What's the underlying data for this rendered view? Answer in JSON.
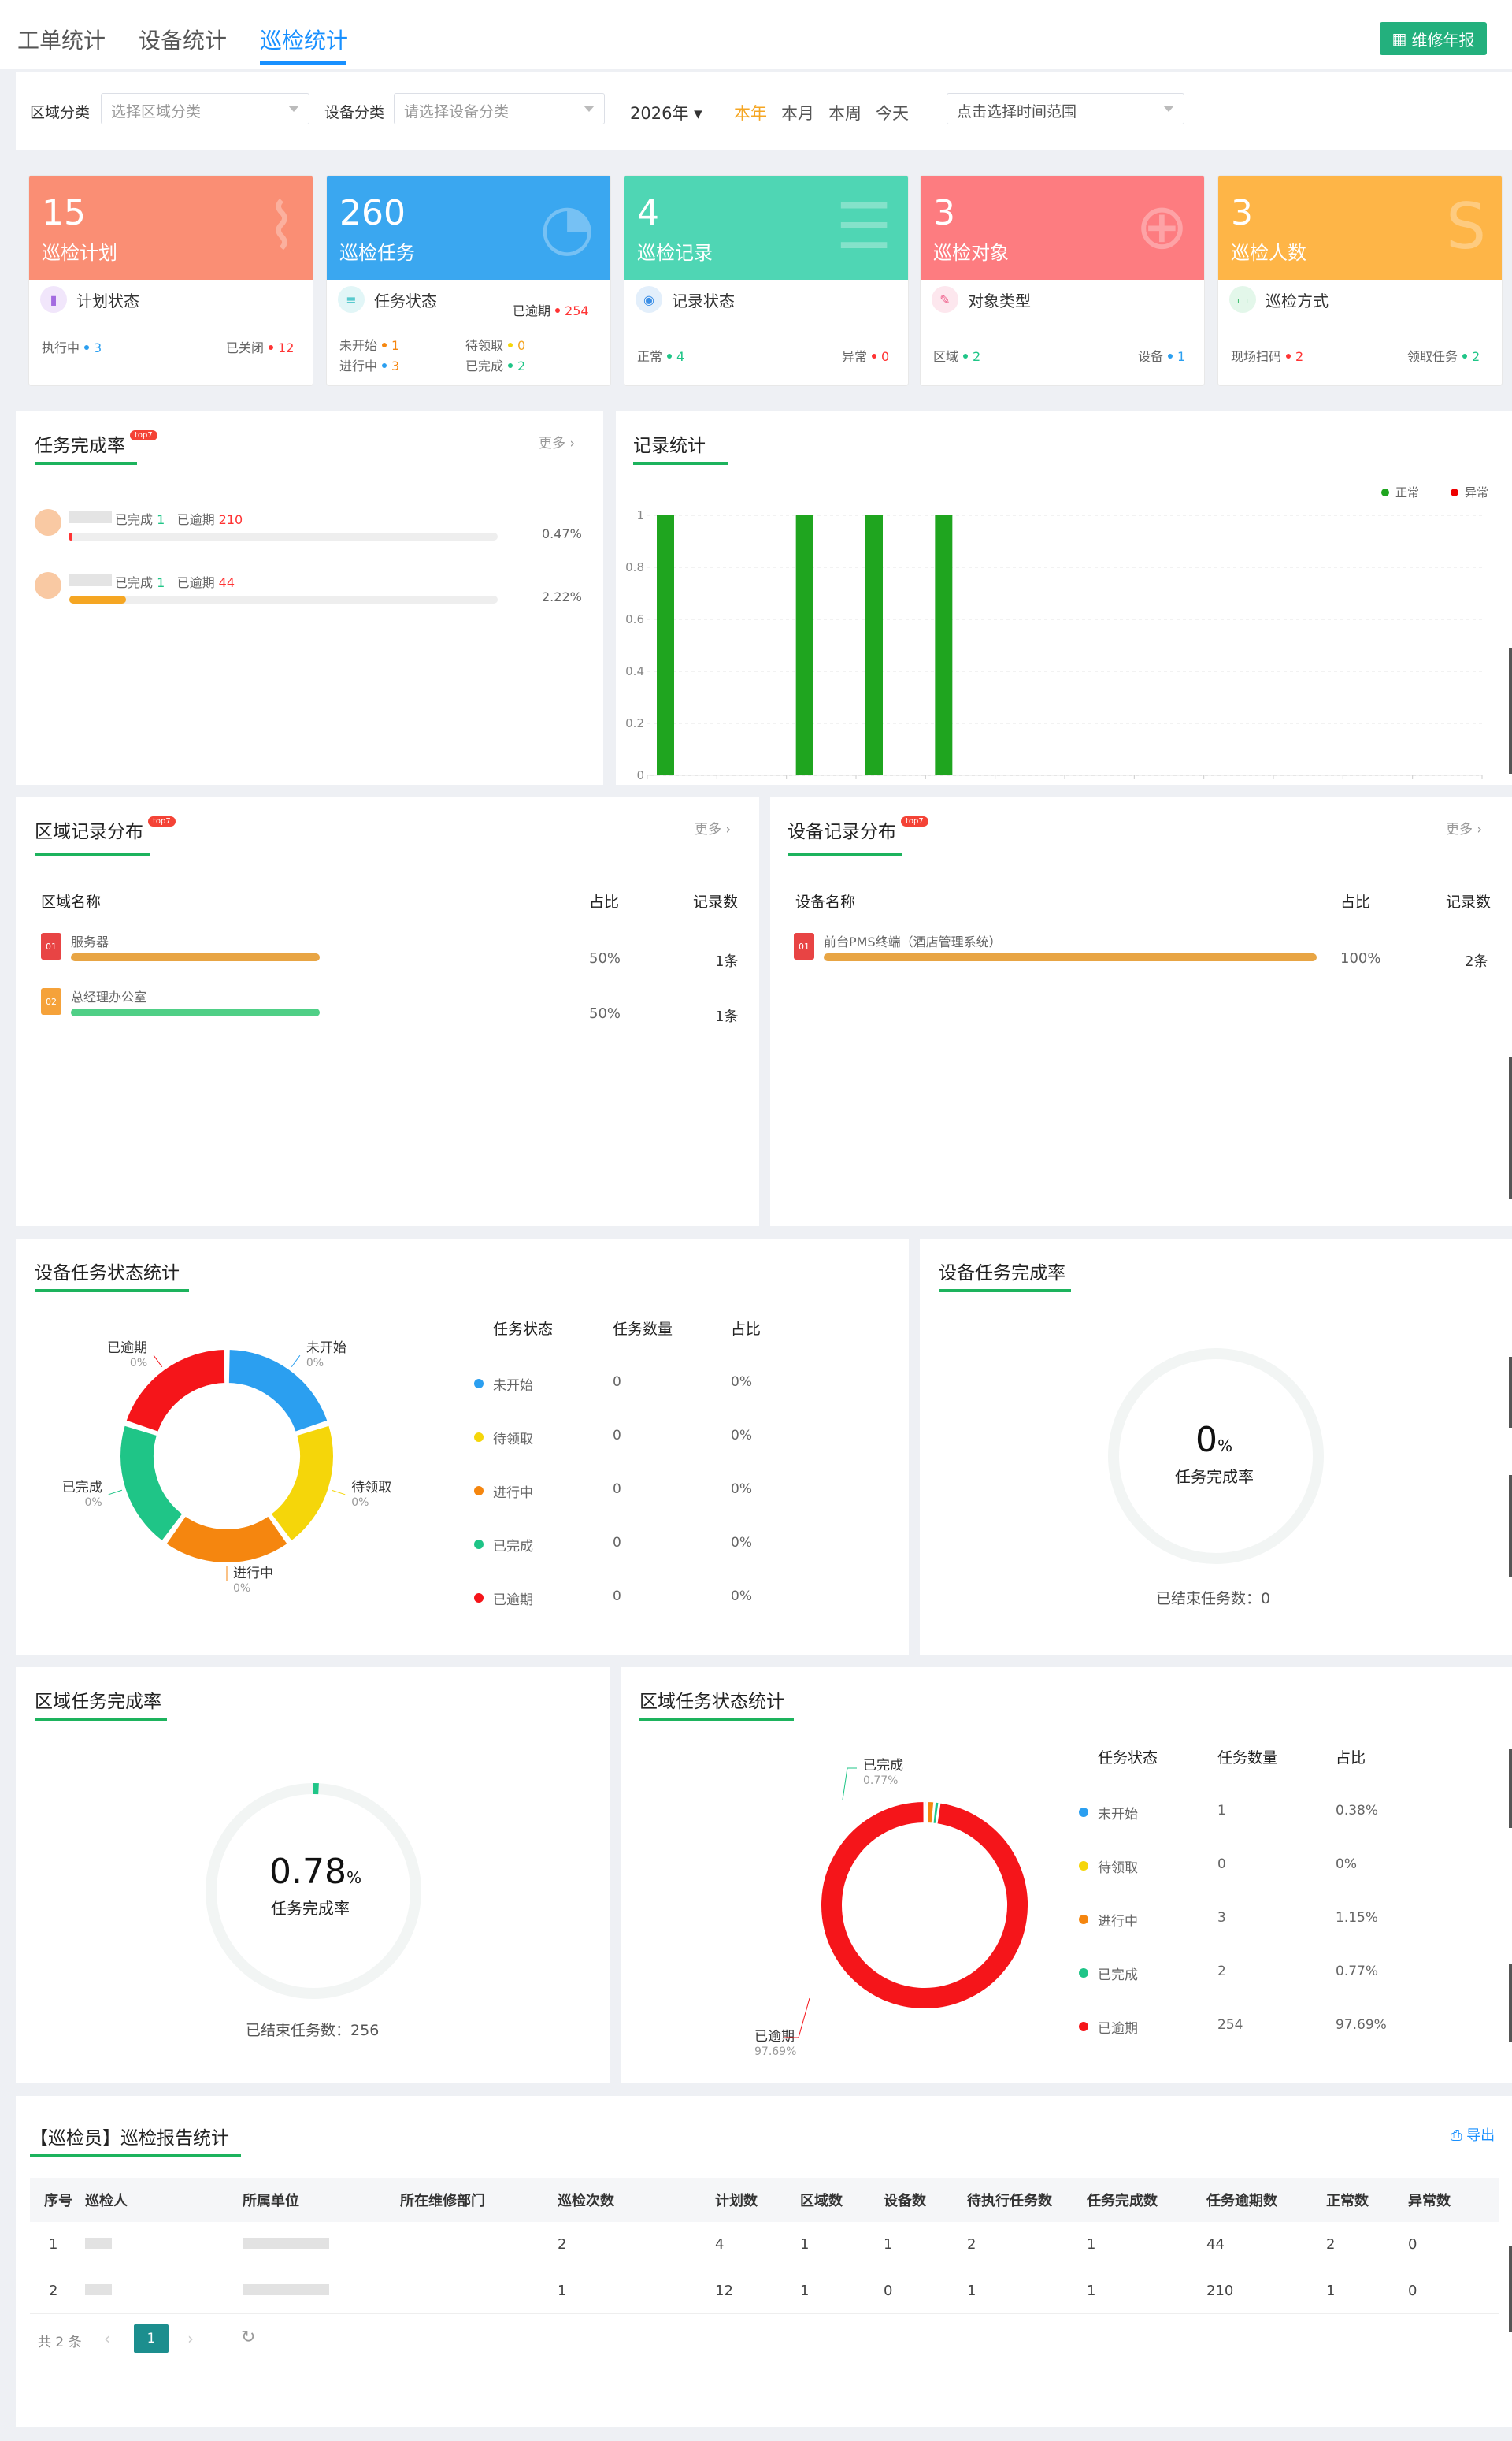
{
  "tabs": [
    "工单统计",
    "设备统计",
    "巡检统计"
  ],
  "report_button": "维修年报",
  "filters": {
    "area_label": "区域分类",
    "area_placeholder": "选择区域分类",
    "device_label": "设备分类",
    "device_placeholder": "请选择设备分类",
    "year": "2026年",
    "quick": [
      "本年",
      "本月",
      "本周",
      "今天"
    ],
    "range_placeholder": "点击选择时间范围"
  },
  "stats": [
    {
      "num": "15",
      "label": "巡检计划",
      "sub": "计划状态",
      "rows": [
        [
          "执行中",
          "3"
        ],
        [
          "已关闭",
          "12"
        ]
      ]
    },
    {
      "num": "260",
      "label": "巡检任务",
      "sub": "任务状态",
      "overdue_label": "已逾期",
      "overdue": "254",
      "rows": [
        [
          "未开始",
          "1"
        ],
        [
          "待领取",
          "0"
        ],
        [
          "进行中",
          "3"
        ],
        [
          "已完成",
          "2"
        ]
      ]
    },
    {
      "num": "4",
      "label": "巡检记录",
      "sub": "记录状态",
      "rows": [
        [
          "正常",
          "4"
        ],
        [
          "异常",
          "0"
        ]
      ]
    },
    {
      "num": "3",
      "label": "巡检对象",
      "sub": "对象类型",
      "rows": [
        [
          "区域",
          "2"
        ],
        [
          "设备",
          "1"
        ]
      ]
    },
    {
      "num": "3",
      "label": "巡检人数",
      "sub": "巡检方式",
      "rows": [
        [
          "现场扫码",
          "2"
        ],
        [
          "领取任务",
          "2"
        ]
      ]
    }
  ],
  "completion": {
    "title": "任务完成率",
    "hot": "top7",
    "more": "更多",
    "items": [
      {
        "done_label": "已完成",
        "done": "1",
        "overdue_label": "已逾期",
        "overdue": "210",
        "pct": "0.47%",
        "fill": 0.0047
      },
      {
        "done_label": "已完成",
        "done": "1",
        "overdue_label": "已逾期",
        "overdue": "44",
        "pct": "2.22%",
        "fill": 0.0222
      }
    ]
  },
  "records": {
    "title": "记录统计",
    "legend": [
      "正常",
      "异常"
    ]
  },
  "chart_data": {
    "type": "bar",
    "series": [
      {
        "name": "正常",
        "values": [
          1,
          0,
          1,
          1,
          1,
          0,
          0,
          0,
          0,
          0,
          0,
          0
        ]
      },
      {
        "name": "异常",
        "values": [
          0,
          0,
          0,
          0,
          0,
          0,
          0,
          0,
          0,
          0,
          0,
          0
        ]
      }
    ],
    "yticks": [
      "0",
      "0.2",
      "0.4",
      "0.6",
      "0.8",
      "1"
    ],
    "ylim": [
      0,
      1
    ]
  },
  "area_records": {
    "title": "区域记录分布",
    "hot": "top7",
    "more": "更多",
    "cols": [
      "区域名称",
      "占比",
      "记录数"
    ],
    "rows": [
      {
        "rank": "01",
        "name": "服务器",
        "pct": "50%",
        "count": "1条",
        "fill": 0.5
      },
      {
        "rank": "02",
        "name": "总经理办公室",
        "pct": "50%",
        "count": "1条",
        "fill": 0.5
      }
    ]
  },
  "device_records": {
    "title": "设备记录分布",
    "hot": "top7",
    "more": "更多",
    "cols": [
      "设备名称",
      "占比",
      "记录数"
    ],
    "rows": [
      {
        "rank": "01",
        "name": "前台PMS终端（酒店管理系统）",
        "pct": "100%",
        "count": "2条",
        "fill": 1
      }
    ]
  },
  "device_task_status": {
    "title": "设备任务状态统计",
    "cols": [
      "任务状态",
      "任务数量",
      "占比"
    ],
    "rows": [
      {
        "name": "未开始",
        "count": "0",
        "pct": "0%",
        "color": "#2b9ff0"
      },
      {
        "name": "待领取",
        "count": "0",
        "pct": "0%",
        "color": "#f5d60a"
      },
      {
        "name": "进行中",
        "count": "0",
        "pct": "0%",
        "color": "#f5860f"
      },
      {
        "name": "已完成",
        "count": "0",
        "pct": "0%",
        "color": "#1fc587"
      },
      {
        "name": "已逾期",
        "count": "0",
        "pct": "0%",
        "color": "#f5151a"
      }
    ],
    "donut_pct": [
      "0%",
      "0%",
      "0%",
      "0%",
      "0%"
    ]
  },
  "device_completion": {
    "title": "设备任务完成率",
    "value": "0",
    "unit": "%",
    "label": "任务完成率",
    "ended_label": "已结束任务数：",
    "ended": "0",
    "fill": 0
  },
  "area_completion": {
    "title": "区域任务完成率",
    "value": "0.78",
    "unit": "%",
    "label": "任务完成率",
    "ended_label": "已结束任务数：",
    "ended": "256",
    "fill": 0.0078
  },
  "area_task_status": {
    "title": "区域任务状态统计",
    "cols": [
      "任务状态",
      "任务数量",
      "占比"
    ],
    "rows": [
      {
        "name": "未开始",
        "count": "1",
        "pct": "0.38%",
        "color": "#2b9ff0"
      },
      {
        "name": "待领取",
        "count": "0",
        "pct": "0%",
        "color": "#f5d60a"
      },
      {
        "name": "进行中",
        "count": "3",
        "pct": "1.15%",
        "color": "#f5860f"
      },
      {
        "name": "已完成",
        "count": "2",
        "pct": "0.77%",
        "color": "#1fc587"
      },
      {
        "name": "已逾期",
        "count": "254",
        "pct": "97.69%",
        "color": "#f5151a"
      }
    ],
    "label_done": "已完成",
    "label_done_pct": "0.77%",
    "label_overdue": "已逾期",
    "label_overdue_pct": "97.69%"
  },
  "report": {
    "title": "【巡检员】巡检报告统计",
    "export": "导出",
    "cols": [
      "序号",
      "巡检人",
      "所属单位",
      "所在维修部门",
      "巡检次数",
      "计划数",
      "区域数",
      "设备数",
      "待执行任务数",
      "任务完成数",
      "任务逾期数",
      "正常数",
      "异常数"
    ],
    "rows": [
      [
        "1",
        "",
        "",
        "",
        "2",
        "4",
        "1",
        "1",
        "2",
        "1",
        "44",
        "2",
        "0"
      ],
      [
        "2",
        "",
        "",
        "",
        "1",
        "12",
        "1",
        "0",
        "1",
        "1",
        "210",
        "1",
        "0"
      ]
    ],
    "total": "共 2 条",
    "page": "1"
  }
}
